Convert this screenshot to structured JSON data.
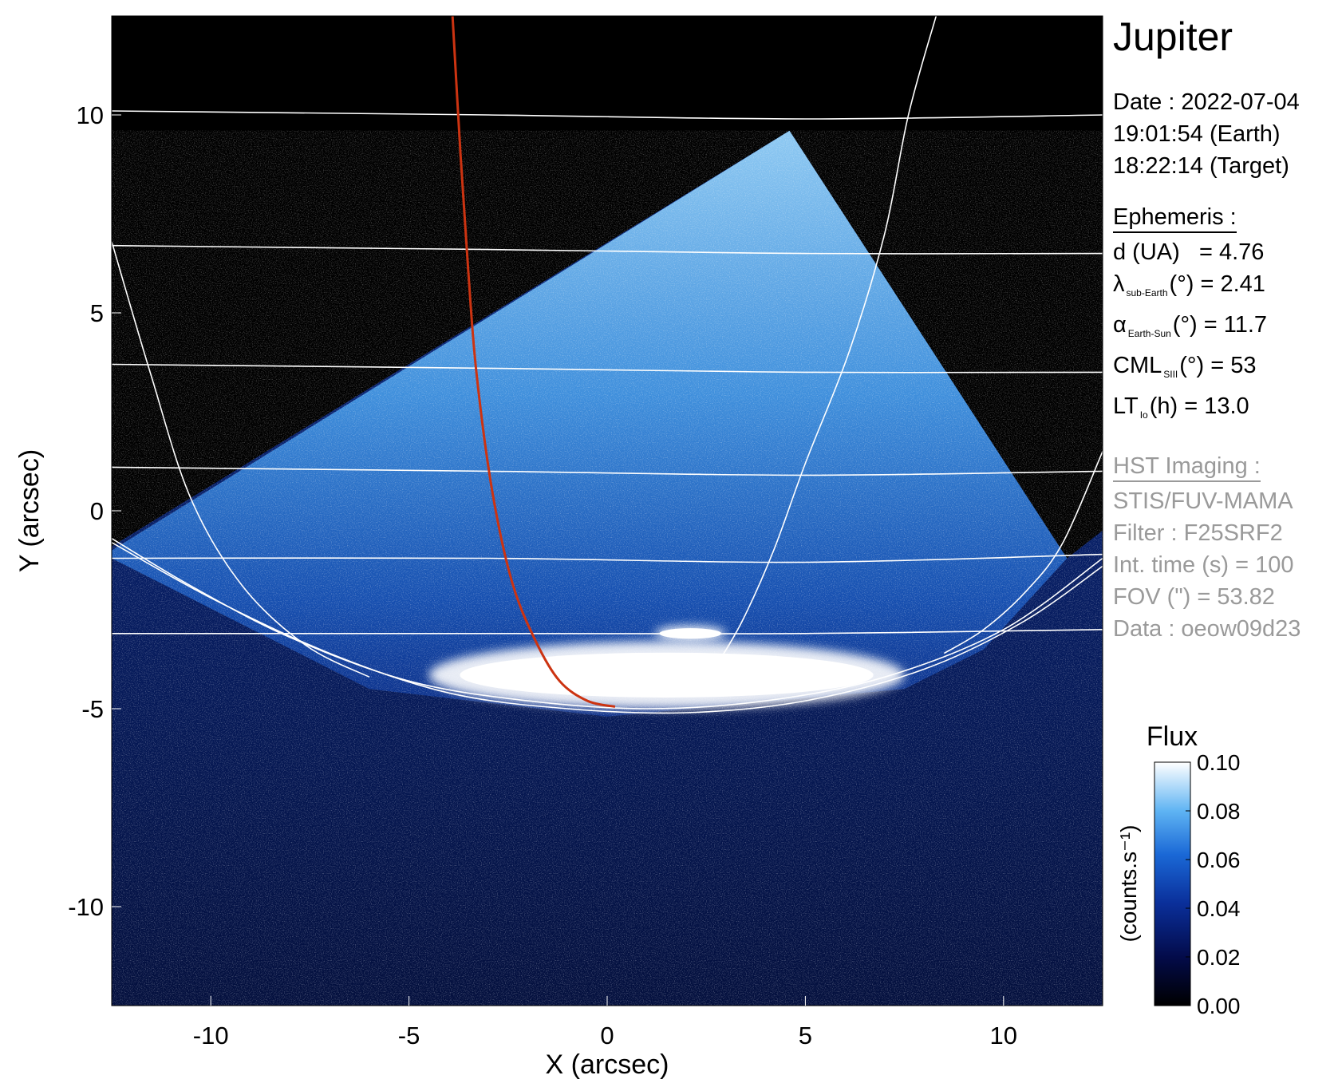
{
  "figure": {
    "planet": "Jupiter",
    "date_line": "Date : 2022-07-04",
    "time_earth": "19:01:54 (Earth)",
    "time_target": "18:22:14 (Target)"
  },
  "ephemeris": {
    "header": "Ephemeris :",
    "d_label": "d (UA)",
    "d_value": "= 4.76",
    "lambda_symbol": "λ",
    "lambda_sub": "sub-Earth",
    "lambda_value": "(°) = 2.41",
    "alpha_symbol": "α",
    "alpha_sub": "Earth-Sun",
    "alpha_value": "(°) = 11.7",
    "cml_symbol": "CML",
    "cml_sub": "SIII",
    "cml_value": "(°) = 53",
    "lt_symbol": "LT",
    "lt_sub": "Io",
    "lt_value": "(h) = 13.0"
  },
  "imaging": {
    "header": "HST Imaging :",
    "instrument": "STIS/FUV-MAMA",
    "filter": "Filter : F25SRF2",
    "int_time": "Int. time (s) = 100",
    "fov": "FOV (\") = 53.82",
    "data": "Data : oeow09d23"
  },
  "colorbar": {
    "title": "Flux",
    "label": "(counts.s⁻¹)",
    "ticks": [
      "0.10",
      "0.08",
      "0.06",
      "0.04",
      "0.02",
      "0.00"
    ],
    "range": [
      0.0,
      0.1
    ],
    "colormap": [
      "#000000",
      "#030b4a",
      "#0a2f9a",
      "#1a68d6",
      "#5fb4f3",
      "#ffffff"
    ]
  },
  "chart_data": {
    "type": "heatmap",
    "xlabel": "X (arcsec)",
    "ylabel": "Y (arcsec)",
    "xlim": [
      -12.5,
      12.5
    ],
    "ylim": [
      -12.5,
      12.5
    ],
    "x_ticks": [
      -10,
      -5,
      0,
      5,
      10
    ],
    "x_tick_labels": [
      "-10",
      "-5",
      "0",
      "5",
      "10"
    ],
    "y_ticks": [
      -10,
      -5,
      0,
      5,
      10
    ],
    "y_tick_labels": [
      "-10",
      "-5",
      "0",
      "5",
      "10"
    ],
    "colors": {
      "grid": "#ffffff",
      "footpath": "#cc3311",
      "background": "#000000"
    },
    "latitude_lines": [
      [
        [
          -12.5,
          10.1
        ],
        [
          -3,
          10.0
        ],
        [
          5,
          9.9
        ],
        [
          12.5,
          10.0
        ]
      ],
      [
        [
          -12.5,
          6.7
        ],
        [
          -3,
          6.6
        ],
        [
          5,
          6.5
        ],
        [
          12.5,
          6.5
        ]
      ],
      [
        [
          -12.5,
          3.7
        ],
        [
          -3,
          3.6
        ],
        [
          5,
          3.5
        ],
        [
          12.5,
          3.5
        ]
      ],
      [
        [
          -12.5,
          1.1
        ],
        [
          -3,
          1.0
        ],
        [
          5,
          0.9
        ],
        [
          12.5,
          1.0
        ]
      ],
      [
        [
          -12.5,
          -1.2
        ],
        [
          -3,
          -1.2
        ],
        [
          5,
          -1.3
        ],
        [
          12.5,
          -1.1
        ]
      ],
      [
        [
          -12.5,
          -3.1
        ],
        [
          -3,
          -3.1
        ],
        [
          5,
          -3.1
        ],
        [
          12.5,
          -3.0
        ]
      ]
    ],
    "auroral_ovals": [
      [
        [
          -12.5,
          -0.7
        ],
        [
          -10.5,
          -1.9
        ],
        [
          -8,
          -3.2
        ],
        [
          -5,
          -4.3
        ],
        [
          -2,
          -4.8
        ],
        [
          1,
          -5.0
        ],
        [
          4,
          -4.8
        ],
        [
          7,
          -4.2
        ],
        [
          10,
          -3.0
        ],
        [
          12.5,
          -1.2
        ]
      ],
      [
        [
          -12.5,
          -0.8
        ],
        [
          -10,
          -2.2
        ],
        [
          -7,
          -3.6
        ],
        [
          -4,
          -4.6
        ],
        [
          -1,
          -5.0
        ],
        [
          2,
          -5.1
        ],
        [
          5,
          -4.8
        ],
        [
          8,
          -4.0
        ],
        [
          10.5,
          -2.8
        ],
        [
          12.5,
          -1.4
        ]
      ]
    ],
    "meridians": [
      [
        [
          -12.5,
          6.8
        ],
        [
          -11.5,
          3.4
        ],
        [
          -10.5,
          0.3
        ],
        [
          -9.2,
          -1.9
        ],
        [
          -7.6,
          -3.4
        ],
        [
          -6,
          -4.2
        ]
      ],
      [
        [
          8.3,
          12.5
        ],
        [
          7.6,
          10.0
        ],
        [
          7,
          7.0
        ],
        [
          6.1,
          4.0
        ],
        [
          5,
          1.2
        ],
        [
          4.2,
          -1.0
        ],
        [
          3.4,
          -2.8
        ],
        [
          2.7,
          -4.0
        ]
      ],
      [
        [
          12.5,
          1.5
        ],
        [
          11.5,
          -0.8
        ],
        [
          10.6,
          -2.0
        ],
        [
          9.5,
          -3.0
        ],
        [
          8.5,
          -3.6
        ]
      ]
    ],
    "io_footpath": [
      [
        -3.9,
        12.5
      ],
      [
        -3.7,
        9.0
      ],
      [
        -3.5,
        6.0
      ],
      [
        -3.3,
        3.5
      ],
      [
        -2.9,
        0.5
      ],
      [
        -2.4,
        -1.8
      ],
      [
        -1.8,
        -3.3
      ],
      [
        -1.2,
        -4.3
      ],
      [
        -0.5,
        -4.8
      ],
      [
        0.2,
        -4.95
      ]
    ],
    "fov_region": [
      [
        -12.5,
        -0.9
      ],
      [
        4.6,
        9.6
      ],
      [
        11.6,
        -1.2
      ],
      [
        12.5,
        -0.5
      ],
      [
        12.5,
        -12.5
      ],
      [
        -12.5,
        -12.5
      ]
    ],
    "disk_region": [
      [
        -12.5,
        -1.0
      ],
      [
        4.6,
        9.6
      ],
      [
        11.6,
        -1.2
      ],
      [
        9.5,
        -3.5
      ],
      [
        7.5,
        -4.5
      ],
      [
        0,
        -5.2
      ],
      [
        -6,
        -4.5
      ],
      [
        -12.5,
        -1.2
      ]
    ],
    "auroral_emission": [
      {
        "x": [
          -4.5,
          7.5
        ],
        "y": [
          -5.0,
          -3.3
        ],
        "flux": 0.1
      },
      {
        "x": [
          1.2,
          3.0
        ],
        "y": [
          -3.3,
          -2.9
        ],
        "flux": 0.1
      }
    ]
  }
}
